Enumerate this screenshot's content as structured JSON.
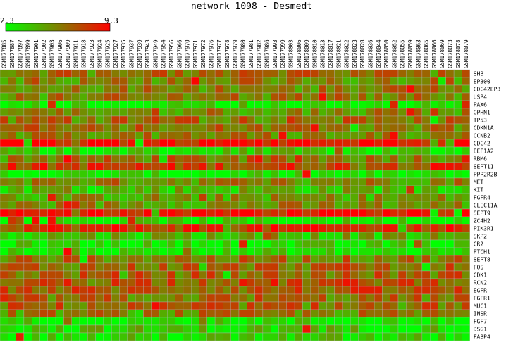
{
  "chart_data": {
    "type": "heatmap",
    "title": "network 1098 - Desmedt",
    "color_scale": {
      "min": 2.3,
      "max": 9.3,
      "min_label": "2.3",
      "max_label": "9.3",
      "low_color": "#00ff00",
      "mid_color": "#808000",
      "high_color": "#ff0000"
    },
    "columns": [
      "GSM177885",
      "GSM177887",
      "GSM177897",
      "GSM177899",
      "GSM177901",
      "GSM177902",
      "GSM177903",
      "GSM177906",
      "GSM177909",
      "GSM177911",
      "GSM177918",
      "GSM177923",
      "GSM177924",
      "GSM177925",
      "GSM177927",
      "GSM177935",
      "GSM177937",
      "GSM177939",
      "GSM177943",
      "GSM177949",
      "GSM177954",
      "GSM177956",
      "GSM177966",
      "GSM177970",
      "GSM177971",
      "GSM177972",
      "GSM177976",
      "GSM177977",
      "GSM177978",
      "GSM177979",
      "GSM177980",
      "GSM177981",
      "GSM177982",
      "GSM177986",
      "GSM177993",
      "GSM177999",
      "GSM178003",
      "GSM178006",
      "GSM178009",
      "GSM178010",
      "GSM178013",
      "GSM178017",
      "GSM178021",
      "GSM178022",
      "GSM178023",
      "GSM178028",
      "GSM178036",
      "GSM178044",
      "GSM178050",
      "GSM178052",
      "GSM178055",
      "GSM178059",
      "GSM178063",
      "GSM178065",
      "GSM178066",
      "GSM178069",
      "GSM178073",
      "GSM178078",
      "GSM178079"
    ],
    "rows": [
      {
        "gene": "SHB",
        "level": 0.55
      },
      {
        "gene": "EP300",
        "level": 0.5
      },
      {
        "gene": "CDC42EP3",
        "level": 0.5
      },
      {
        "gene": "USP4",
        "level": 0.5
      },
      {
        "gene": "PAX6",
        "level": 0.05
      },
      {
        "gene": "OPHN1",
        "level": 0.45
      },
      {
        "gene": "TP53",
        "level": 0.55
      },
      {
        "gene": "CDKN1A",
        "level": 0.55
      },
      {
        "gene": "CCNB2",
        "level": 0.5
      },
      {
        "gene": "CDC42",
        "level": 0.95
      },
      {
        "gene": "EEF1A2",
        "level": 0.15
      },
      {
        "gene": "RBM6",
        "level": 0.55
      },
      {
        "gene": "SEPT11",
        "level": 0.75
      },
      {
        "gene": "PPP2R2B",
        "level": 0.05
      },
      {
        "gene": "MET",
        "level": 0.5
      },
      {
        "gene": "KIT",
        "level": 0.3
      },
      {
        "gene": "FGFR4",
        "level": 0.4
      },
      {
        "gene": "CLEC11A",
        "level": 0.45
      },
      {
        "gene": "SEPT9",
        "level": 0.97
      },
      {
        "gene": "ZC4H2",
        "level": 0.1
      },
      {
        "gene": "PIK3R1",
        "level": 0.8
      },
      {
        "gene": "SKP2",
        "level": 0.3
      },
      {
        "gene": "CR2",
        "level": 0.1
      },
      {
        "gene": "PTCH1",
        "level": 0.1
      },
      {
        "gene": "SEPT8",
        "level": 0.55
      },
      {
        "gene": "FOS",
        "level": 0.6
      },
      {
        "gene": "CDK1",
        "level": 0.6
      },
      {
        "gene": "RCN2",
        "level": 0.7
      },
      {
        "gene": "EGFR",
        "level": 0.65
      },
      {
        "gene": "FGFR1",
        "level": 0.55
      },
      {
        "gene": "MUC1",
        "level": 0.6
      },
      {
        "gene": "INSR",
        "level": 0.5
      },
      {
        "gene": "FGF7",
        "level": 0.1
      },
      {
        "gene": "DSG1",
        "level": 0.2
      },
      {
        "gene": "FABP4",
        "level": 0.15
      }
    ]
  }
}
